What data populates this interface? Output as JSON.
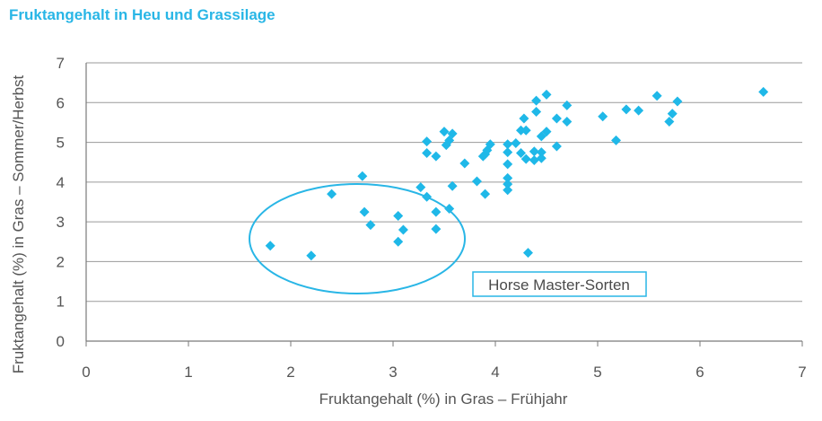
{
  "chart_data": {
    "type": "scatter",
    "title": "Fruktangehalt in Heu und Grassilage",
    "xlabel": "Fruktangehalt (%) in Gras – Frühjahr",
    "ylabel": "Fruktangehalt (%) in Gras – Sommer/Herbst",
    "xlim": [
      0,
      7
    ],
    "ylim": [
      0,
      7
    ],
    "xticks": [
      "0",
      "1",
      "2",
      "3",
      "4",
      "5",
      "6",
      "7"
    ],
    "yticks": [
      "0",
      "1",
      "2",
      "3",
      "4",
      "5",
      "6",
      "7"
    ],
    "grid": "horizontal",
    "colors": {
      "marker": "#1FB8E8",
      "ellipse": "#29B6E6",
      "title": "#29B6E6"
    },
    "annotation": {
      "text": "Horse Master-Sorten",
      "highlight_center": [
        2.65,
        2.6
      ]
    },
    "points": [
      {
        "x": 1.8,
        "y": 2.4
      },
      {
        "x": 2.2,
        "y": 2.15
      },
      {
        "x": 2.4,
        "y": 3.7
      },
      {
        "x": 2.7,
        "y": 4.15
      },
      {
        "x": 2.72,
        "y": 3.25
      },
      {
        "x": 2.78,
        "y": 2.92
      },
      {
        "x": 3.05,
        "y": 3.15
      },
      {
        "x": 3.05,
        "y": 2.5
      },
      {
        "x": 3.1,
        "y": 2.8
      },
      {
        "x": 3.27,
        "y": 3.87
      },
      {
        "x": 3.33,
        "y": 3.63
      },
      {
        "x": 3.42,
        "y": 3.25
      },
      {
        "x": 3.42,
        "y": 2.82
      },
      {
        "x": 3.55,
        "y": 3.33
      },
      {
        "x": 3.58,
        "y": 3.9
      },
      {
        "x": 3.33,
        "y": 5.02
      },
      {
        "x": 3.33,
        "y": 4.73
      },
      {
        "x": 3.42,
        "y": 4.65
      },
      {
        "x": 3.5,
        "y": 5.27
      },
      {
        "x": 3.52,
        "y": 4.93
      },
      {
        "x": 3.55,
        "y": 5.05
      },
      {
        "x": 3.58,
        "y": 5.22
      },
      {
        "x": 3.7,
        "y": 4.47
      },
      {
        "x": 3.82,
        "y": 4.02
      },
      {
        "x": 3.88,
        "y": 4.65
      },
      {
        "x": 3.9,
        "y": 4.7
      },
      {
        "x": 3.92,
        "y": 4.8
      },
      {
        "x": 3.95,
        "y": 4.95
      },
      {
        "x": 3.9,
        "y": 3.7
      },
      {
        "x": 4.12,
        "y": 4.95
      },
      {
        "x": 4.12,
        "y": 4.75
      },
      {
        "x": 4.12,
        "y": 4.45
      },
      {
        "x": 4.12,
        "y": 4.1
      },
      {
        "x": 4.12,
        "y": 3.95
      },
      {
        "x": 4.12,
        "y": 3.8
      },
      {
        "x": 4.2,
        "y": 4.98
      },
      {
        "x": 4.25,
        "y": 5.3
      },
      {
        "x": 4.25,
        "y": 4.73
      },
      {
        "x": 4.28,
        "y": 5.6
      },
      {
        "x": 4.3,
        "y": 5.3
      },
      {
        "x": 4.3,
        "y": 4.58
      },
      {
        "x": 4.38,
        "y": 4.77
      },
      {
        "x": 4.38,
        "y": 4.55
      },
      {
        "x": 4.4,
        "y": 6.05
      },
      {
        "x": 4.4,
        "y": 5.77
      },
      {
        "x": 4.45,
        "y": 5.15
      },
      {
        "x": 4.45,
        "y": 4.75
      },
      {
        "x": 4.45,
        "y": 4.6
      },
      {
        "x": 4.5,
        "y": 6.2
      },
      {
        "x": 4.5,
        "y": 5.27
      },
      {
        "x": 4.32,
        "y": 2.22
      },
      {
        "x": 4.6,
        "y": 5.6
      },
      {
        "x": 4.6,
        "y": 4.9
      },
      {
        "x": 4.7,
        "y": 5.93
      },
      {
        "x": 4.7,
        "y": 5.52
      },
      {
        "x": 5.05,
        "y": 5.65
      },
      {
        "x": 5.18,
        "y": 5.05
      },
      {
        "x": 5.28,
        "y": 5.83
      },
      {
        "x": 5.4,
        "y": 5.8
      },
      {
        "x": 5.58,
        "y": 6.17
      },
      {
        "x": 5.7,
        "y": 5.52
      },
      {
        "x": 5.73,
        "y": 5.72
      },
      {
        "x": 5.78,
        "y": 6.03
      },
      {
        "x": 6.62,
        "y": 6.27
      }
    ]
  }
}
